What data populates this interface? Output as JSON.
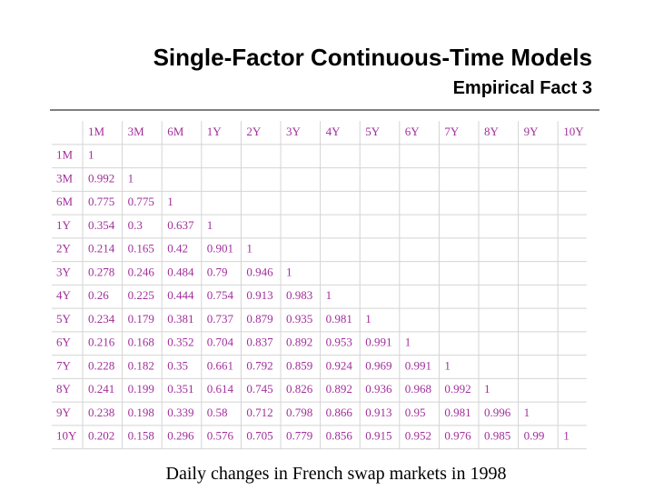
{
  "title": "Single-Factor Continuous-Time Models",
  "subtitle": "Empirical Fact 3",
  "table": {
    "columns": [
      "1M",
      "3M",
      "6M",
      "1Y",
      "2Y",
      "3Y",
      "4Y",
      "5Y",
      "6Y",
      "7Y",
      "8Y",
      "9Y",
      "10Y"
    ],
    "rows": [
      {
        "label": "1M",
        "values": [
          1
        ]
      },
      {
        "label": "3M",
        "values": [
          0.992,
          1
        ]
      },
      {
        "label": "6M",
        "values": [
          0.775,
          0.775,
          1
        ]
      },
      {
        "label": "1Y",
        "values": [
          0.354,
          0.3,
          0.637,
          1
        ]
      },
      {
        "label": "2Y",
        "values": [
          0.214,
          0.165,
          0.42,
          0.901,
          1
        ]
      },
      {
        "label": "3Y",
        "values": [
          0.278,
          0.246,
          0.484,
          0.79,
          0.946,
          1
        ]
      },
      {
        "label": "4Y",
        "values": [
          0.26,
          0.225,
          0.444,
          0.754,
          0.913,
          0.983,
          1
        ]
      },
      {
        "label": "5Y",
        "values": [
          0.234,
          0.179,
          0.381,
          0.737,
          0.879,
          0.935,
          0.981,
          1
        ]
      },
      {
        "label": "6Y",
        "values": [
          0.216,
          0.168,
          0.352,
          0.704,
          0.837,
          0.892,
          0.953,
          0.991,
          1
        ]
      },
      {
        "label": "7Y",
        "values": [
          0.228,
          0.182,
          0.35,
          0.661,
          0.792,
          0.859,
          0.924,
          0.969,
          0.991,
          1
        ]
      },
      {
        "label": "8Y",
        "values": [
          0.241,
          0.199,
          0.351,
          0.614,
          0.745,
          0.826,
          0.892,
          0.936,
          0.968,
          0.992,
          1
        ]
      },
      {
        "label": "9Y",
        "values": [
          0.238,
          0.198,
          0.339,
          0.58,
          0.712,
          0.798,
          0.866,
          0.913,
          0.95,
          0.981,
          0.996,
          1
        ]
      },
      {
        "label": "10Y",
        "values": [
          0.202,
          0.158,
          0.296,
          0.576,
          0.705,
          0.779,
          0.856,
          0.915,
          0.952,
          0.976,
          0.985,
          0.99,
          1
        ]
      }
    ]
  },
  "caption": "Daily changes in French swap markets in 1998"
}
